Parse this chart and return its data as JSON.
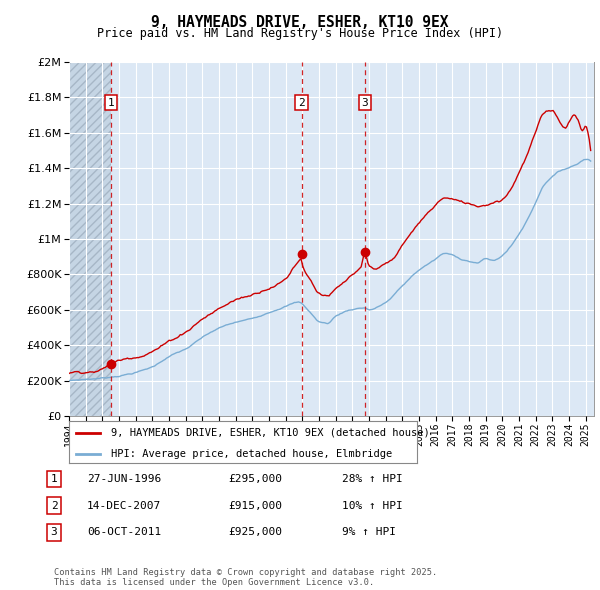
{
  "title": "9, HAYMEADS DRIVE, ESHER, KT10 9EX",
  "subtitle": "Price paid vs. HM Land Registry's House Price Index (HPI)",
  "ylim": [
    0,
    2000000
  ],
  "xlim_start": 1994.0,
  "xlim_end": 2025.5,
  "yticks": [
    0,
    200000,
    400000,
    600000,
    800000,
    1000000,
    1200000,
    1400000,
    1600000,
    1800000,
    2000000
  ],
  "ytick_labels": [
    "£0",
    "£200K",
    "£400K",
    "£600K",
    "£800K",
    "£1M",
    "£1.2M",
    "£1.4M",
    "£1.6M",
    "£1.8M",
    "£2M"
  ],
  "hpi_color": "#7aadd4",
  "price_color": "#cc0000",
  "bg_color": "#dce8f5",
  "hatch_bg_color": "#c5d5e4",
  "grid_color": "white",
  "sale_dates": [
    1996.5,
    2007.95,
    2011.75
  ],
  "sale_prices": [
    295000,
    915000,
    925000
  ],
  "legend_label_price": "9, HAYMEADS DRIVE, ESHER, KT10 9EX (detached house)",
  "legend_label_hpi": "HPI: Average price, detached house, Elmbridge",
  "table_rows": [
    {
      "num": "1",
      "date": "27-JUN-1996",
      "price": "£295,000",
      "hpi": "28% ↑ HPI"
    },
    {
      "num": "2",
      "date": "14-DEC-2007",
      "price": "£915,000",
      "hpi": "10% ↑ HPI"
    },
    {
      "num": "3",
      "date": "06-OCT-2011",
      "price": "£925,000",
      "hpi": "9% ↑ HPI"
    }
  ],
  "footnote": "Contains HM Land Registry data © Crown copyright and database right 2025.\nThis data is licensed under the Open Government Licence v3.0."
}
